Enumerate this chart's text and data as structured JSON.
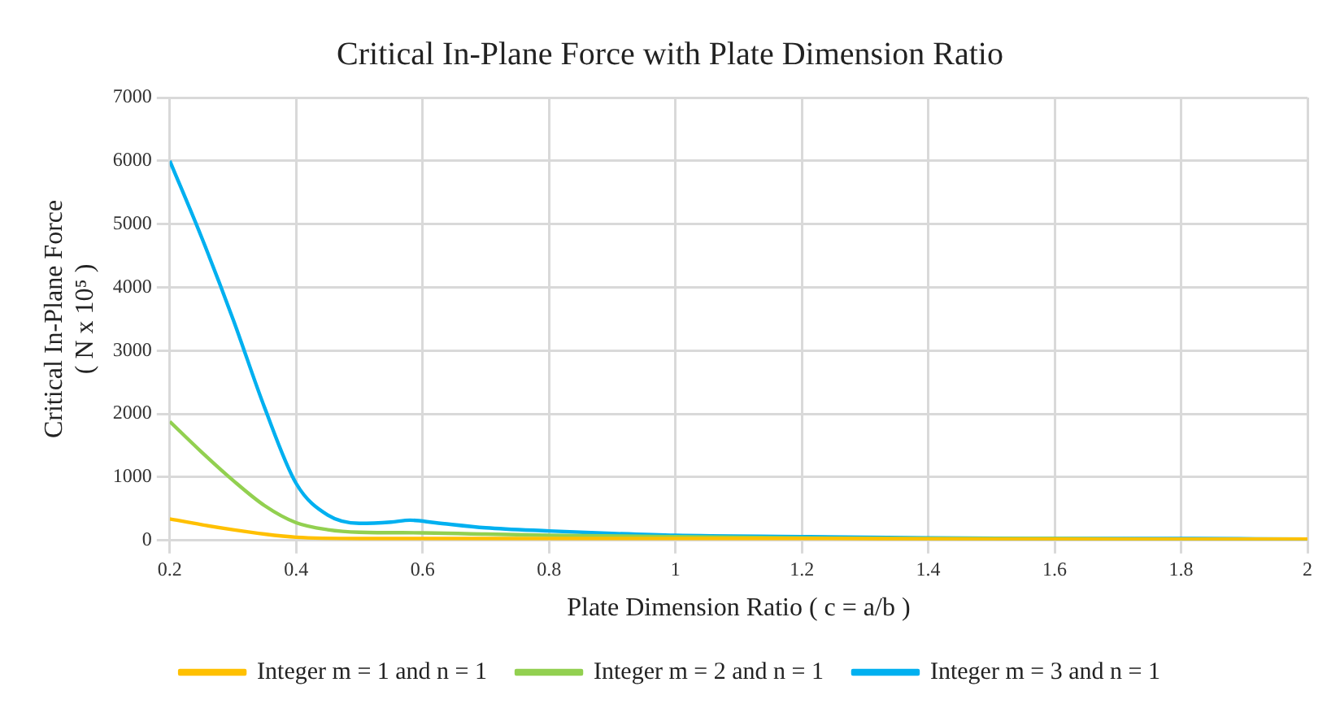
{
  "chart_data": {
    "type": "line",
    "title": "Critical In-Plane Force with Plate Dimension Ratio",
    "xlabel": "Plate Dimension Ratio ( c = a/b )",
    "ylabel": "Critical In-Plane Force\n( N x 10⁵ )",
    "xlim": [
      0.2,
      2
    ],
    "xticks": [
      0.2,
      0.4,
      0.6,
      0.8,
      1,
      1.2,
      1.4,
      1.6,
      1.8,
      2
    ],
    "ylim": [
      0,
      7000
    ],
    "yticks": [
      0,
      1000,
      2000,
      3000,
      4000,
      5000,
      6000,
      7000
    ],
    "grid": true,
    "legend": "bottom",
    "marker": "none",
    "series": [
      {
        "name": "Integer m = 1 and n = 1",
        "color": "#ffc000",
        "x": [
          0.2,
          0.25,
          0.3,
          0.35,
          0.4,
          0.5,
          0.6,
          0.8,
          1,
          1.2,
          1.5,
          2
        ],
        "values": [
          340,
          250,
          170,
          100,
          50,
          30,
          30,
          30,
          30,
          30,
          20,
          20
        ]
      },
      {
        "name": "Integer m = 2 and n = 1",
        "color": "#92d050",
        "x": [
          0.2,
          0.25,
          0.3,
          0.35,
          0.4,
          0.45,
          0.5,
          0.6,
          0.7,
          0.8,
          1,
          1.2,
          1.4,
          1.6,
          1.8,
          2
        ],
        "values": [
          1880,
          1400,
          950,
          550,
          280,
          170,
          130,
          120,
          100,
          80,
          60,
          40,
          30,
          30,
          20,
          20
        ]
      },
      {
        "name": "Integer m = 3 and n = 1",
        "color": "#00b0f0",
        "x": [
          0.2,
          0.25,
          0.3,
          0.35,
          0.4,
          0.45,
          0.5,
          0.55,
          0.58,
          0.62,
          0.7,
          0.8,
          0.9,
          1,
          1.2,
          1.4,
          1.6,
          1.8,
          2
        ],
        "values": [
          6000,
          4800,
          3500,
          2100,
          900,
          400,
          270,
          290,
          320,
          280,
          200,
          150,
          110,
          80,
          60,
          40,
          30,
          30,
          20
        ]
      }
    ]
  }
}
